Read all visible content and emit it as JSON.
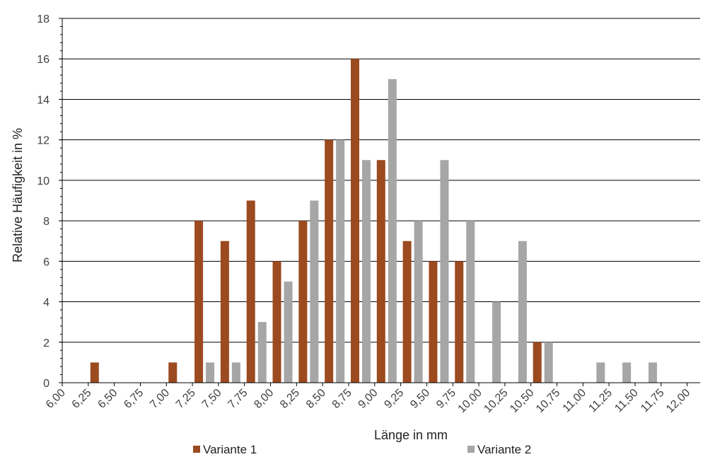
{
  "chart_data": {
    "type": "bar",
    "title": "",
    "xlabel": "Länge in mm",
    "ylabel": "Relative Häufigkeit in %",
    "ylim": [
      0,
      18
    ],
    "yticks": [
      "0",
      "2",
      "4",
      "6",
      "8",
      "10",
      "12",
      "14",
      "16",
      "18"
    ],
    "categories": [
      "6,00",
      "6,25",
      "6,50",
      "6,75",
      "7,00",
      "7,25",
      "7,50",
      "7,75",
      "8,00",
      "8,25",
      "8,50",
      "8,75",
      "9,00",
      "9,25",
      "9,50",
      "9,75",
      "10,00",
      "10,25",
      "10,50",
      "10,75",
      "11,00",
      "11,25",
      "11,50",
      "11,75",
      "12,00"
    ],
    "grid": true,
    "legend_position": "bottom",
    "series": [
      {
        "name": "Variante 1",
        "color": "#9c4a1f",
        "values": [
          0,
          1,
          0,
          0,
          1,
          8,
          7,
          9,
          6,
          8,
          12,
          16,
          11,
          7,
          6,
          6,
          0,
          0,
          2,
          0,
          0,
          0,
          0,
          0,
          0
        ]
      },
      {
        "name": "Variante 2",
        "color": "#a6a6a6",
        "values": [
          0,
          0,
          0,
          0,
          0,
          1,
          1,
          3,
          5,
          9,
          12,
          11,
          15,
          8,
          11,
          8,
          4,
          7,
          2,
          0,
          1,
          1,
          1,
          0,
          0
        ]
      }
    ]
  }
}
